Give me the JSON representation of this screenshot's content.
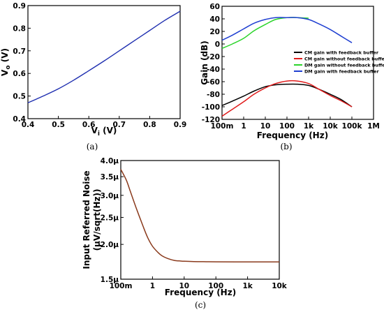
{
  "chart_data": [
    {
      "panel": "(a)",
      "type": "line",
      "xlabel_base": "V",
      "xlabel_sub": "i",
      "xlabel_unit": " (V)",
      "ylabel_base": "V",
      "ylabel_sub": "o",
      "ylabel_unit": " (V)",
      "xlim": [
        0.4,
        0.9
      ],
      "ylim": [
        0.4,
        0.9
      ],
      "xscale": "linear",
      "yscale": "linear",
      "xticks": [
        "0.4",
        "0.5",
        "0.6",
        "0.7",
        "0.8",
        "0.9"
      ],
      "yticks": [
        "0.4",
        "0.5",
        "0.6",
        "0.7",
        "0.8",
        "0.9"
      ],
      "grid": false,
      "series": [
        {
          "color": "#1f2fb0",
          "x": [
            0.4,
            0.45,
            0.5,
            0.55,
            0.6,
            0.65,
            0.7,
            0.75,
            0.8,
            0.85,
            0.9
          ],
          "y": [
            0.47,
            0.5,
            0.532,
            0.57,
            0.612,
            0.655,
            0.7,
            0.745,
            0.79,
            0.835,
            0.875
          ]
        }
      ]
    },
    {
      "panel": "(b)",
      "type": "line",
      "xlabel": "Frequency (Hz)",
      "ylabel": "Gain (dB)",
      "xscale": "log",
      "xlim": [
        0.1,
        1000000
      ],
      "ylim": [
        -120,
        60
      ],
      "xticks": [
        {
          "v": 0.1,
          "l": "100m"
        },
        {
          "v": 1,
          "l": "1"
        },
        {
          "v": 10,
          "l": "10"
        },
        {
          "v": 100,
          "l": "100"
        },
        {
          "v": 1000,
          "l": "1k"
        },
        {
          "v": 10000,
          "l": "10k"
        },
        {
          "v": 100000,
          "l": "100k"
        },
        {
          "v": 1000000,
          "l": "1M"
        }
      ],
      "yticks": [
        "60",
        "40",
        "20",
        "0",
        "-20",
        "-40",
        "-60",
        "-80",
        "-100",
        "-120"
      ],
      "legend_position": "center-right",
      "grid": false,
      "series": [
        {
          "name": "CM gain with feedback buffer",
          "color": "#000000",
          "x": [
            0.1,
            0.3,
            1,
            3,
            10,
            30,
            100,
            300,
            1000,
            3000,
            10000,
            30000,
            100000
          ],
          "y": [
            -98,
            -91,
            -83,
            -75,
            -68,
            -65,
            -64,
            -64,
            -66,
            -72,
            -80,
            -88,
            -100
          ]
        },
        {
          "name": "CM gain without feedback buffer",
          "color": "#e01b1b",
          "x": [
            0.1,
            0.3,
            1,
            3,
            10,
            30,
            100,
            300,
            1000,
            3000,
            10000,
            30000,
            100000
          ],
          "y": [
            -115,
            -104,
            -92,
            -80,
            -70,
            -63,
            -59,
            -59,
            -63,
            -72,
            -82,
            -90,
            -100
          ]
        },
        {
          "name": "DM gain without feedback buffer",
          "color": "#2bd42b",
          "x": [
            0.1,
            0.3,
            1,
            3,
            10,
            30,
            100,
            300,
            1000
          ],
          "y": [
            -7,
            0,
            9,
            21,
            31,
            39,
            42,
            42,
            41
          ]
        },
        {
          "name": "DM gain with feedback buffer",
          "color": "#1f3fd1",
          "x": [
            0.1,
            0.3,
            1,
            3,
            10,
            30,
            100,
            300,
            1000,
            3000,
            10000,
            30000,
            100000
          ],
          "y": [
            6,
            14,
            24,
            33,
            39,
            42,
            42,
            42,
            39,
            32,
            23,
            13,
            2
          ]
        }
      ]
    },
    {
      "panel": "(c)",
      "type": "line",
      "xlabel": "Frequency (Hz)",
      "ylabel_line1": "Input Referred Noise",
      "ylabel_line2": "(µV/sqrt(Hz))",
      "xscale": "log",
      "yscale": "log",
      "xlim": [
        0.1,
        10000
      ],
      "ylim": [
        1.5,
        4.0
      ],
      "xticks": [
        {
          "v": 0.1,
          "l": "100m"
        },
        {
          "v": 1,
          "l": "1"
        },
        {
          "v": 10,
          "l": "10"
        },
        {
          "v": 100,
          "l": "100"
        },
        {
          "v": 1000,
          "l": "1k"
        },
        {
          "v": 10000,
          "l": "10k"
        }
      ],
      "yticks": [
        {
          "v": 4.0,
          "l": "4.0µ"
        },
        {
          "v": 3.5,
          "l": "3.5µ"
        },
        {
          "v": 3.0,
          "l": "3.0µ"
        },
        {
          "v": 2.5,
          "l": "2.5µ"
        },
        {
          "v": 2.0,
          "l": "2.0µ"
        },
        {
          "v": 1.5,
          "l": "1.5µ"
        }
      ],
      "grid": false,
      "series": [
        {
          "color": "#8a3a1c",
          "x": [
            0.1,
            0.15,
            0.2,
            0.3,
            0.5,
            0.7,
            1,
            1.5,
            2,
            3,
            5,
            7,
            10,
            20,
            50,
            100,
            1000,
            10000
          ],
          "y": [
            3.72,
            3.4,
            3.1,
            2.72,
            2.33,
            2.12,
            1.97,
            1.87,
            1.82,
            1.78,
            1.75,
            1.745,
            1.74,
            1.735,
            1.733,
            1.732,
            1.73,
            1.73
          ]
        }
      ]
    }
  ]
}
